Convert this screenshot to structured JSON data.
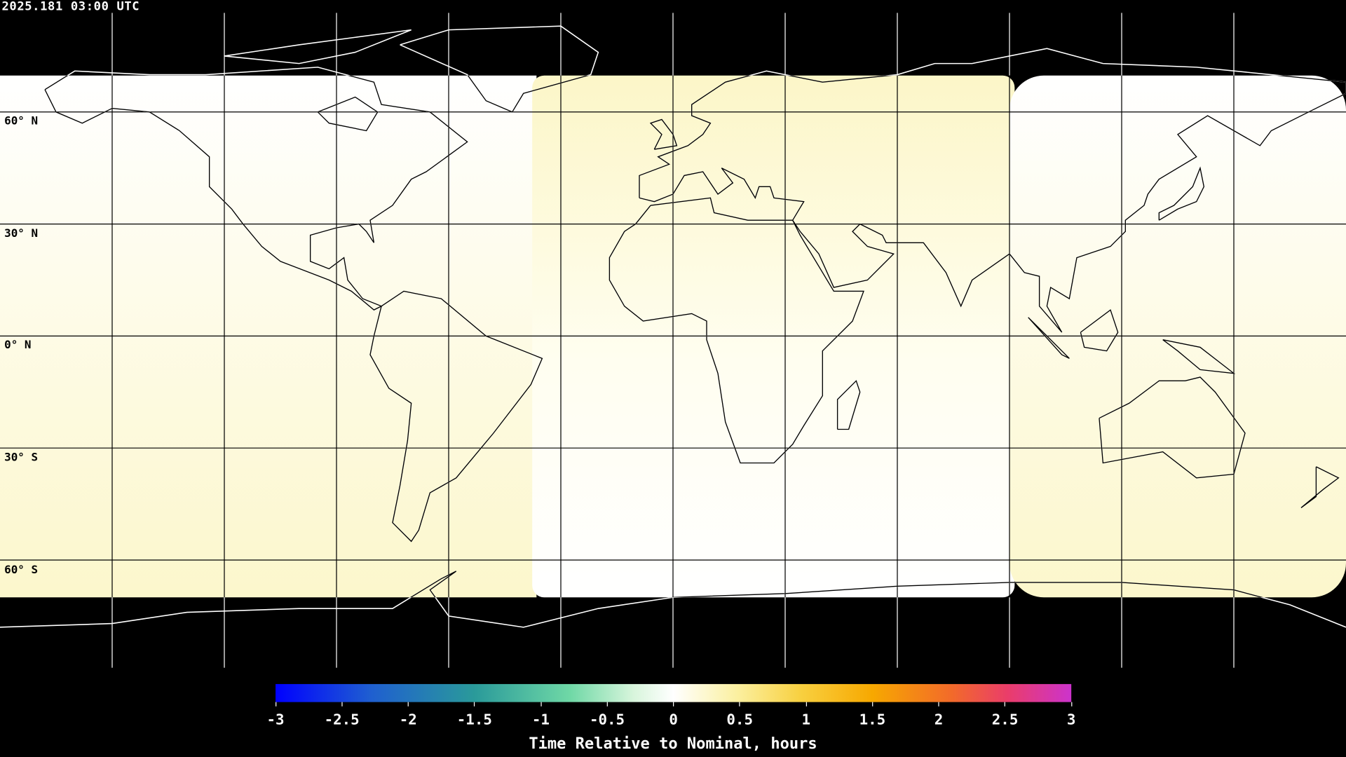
{
  "header": {
    "timestamp": "2025.181 03:00 UTC"
  },
  "map": {
    "projection": "equirectangular",
    "grid": true,
    "latitude_labels": [
      "60° N",
      "30° N",
      "0° N",
      "30° S",
      "60° S"
    ],
    "night_color": "#000000",
    "coastline_color_night": "#ffffff",
    "coastline_color_day": "#000000"
  },
  "colorbar": {
    "title": "Time Relative to Nominal, hours",
    "range": [
      -3,
      3
    ],
    "tick_labels": [
      "-3",
      "-2.5",
      "-2",
      "-1.5",
      "-1",
      "-0.5",
      "0",
      "0.5",
      "1",
      "1.5",
      "2",
      "2.5",
      "3"
    ],
    "colors": [
      "#0000ff",
      "#2a9a9a",
      "#6fd8a6",
      "#ffffff",
      "#f8d040",
      "#f7a800",
      "#f26a2a",
      "#cc33cc"
    ]
  }
}
